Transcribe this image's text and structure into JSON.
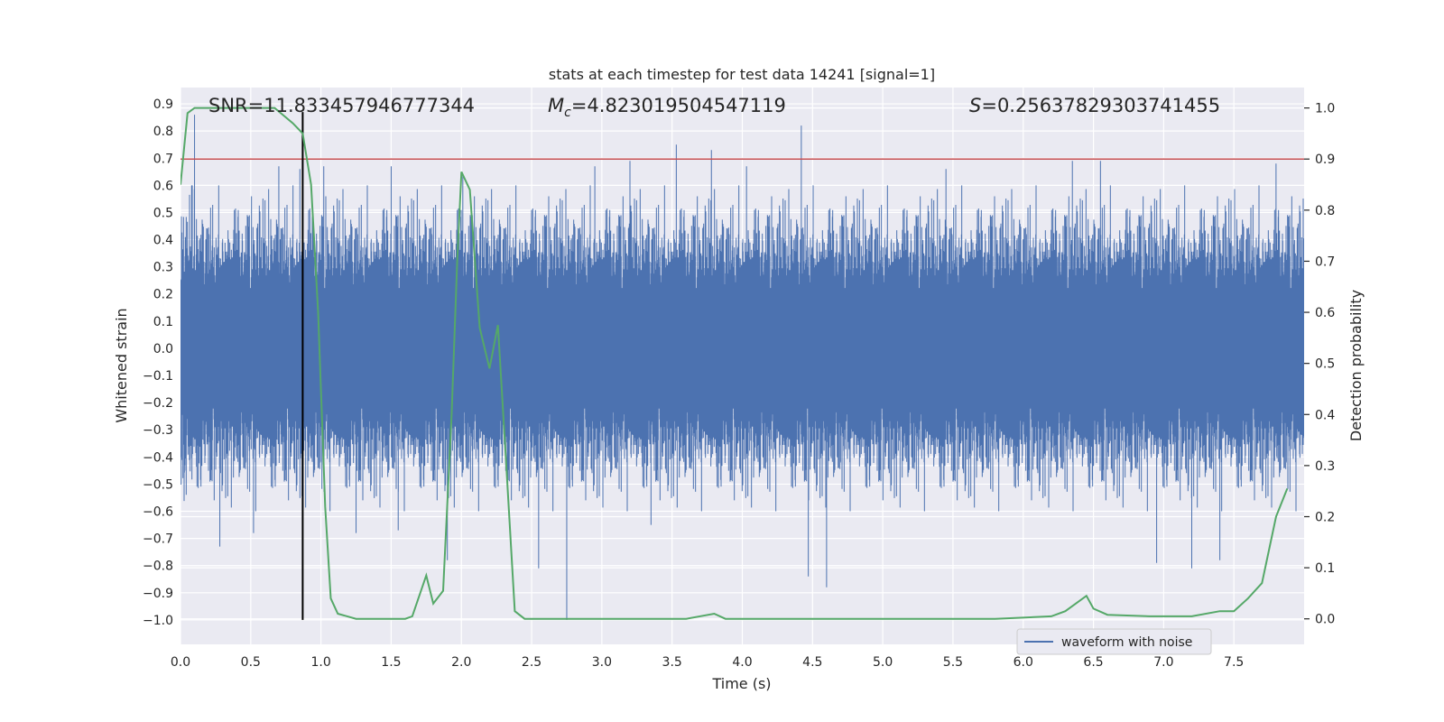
{
  "chart_data": {
    "type": "line",
    "title": "stats at each timestep for test data 14241 [signal=1]",
    "xlabel": "Time (s)",
    "ylabel_left": "Whitened strain",
    "ylabel_right": "Detection probability",
    "xlim": [
      0.0,
      8.0
    ],
    "ylim_left": [
      -1.09,
      0.96
    ],
    "ylim_right": [
      -0.05,
      1.04
    ],
    "x_ticks": [
      "0.0",
      "0.5",
      "1.0",
      "1.5",
      "2.0",
      "2.5",
      "3.0",
      "3.5",
      "4.0",
      "4.5",
      "5.0",
      "5.5",
      "6.0",
      "6.5",
      "7.0",
      "7.5"
    ],
    "x_tick_values": [
      0.0,
      0.5,
      1.0,
      1.5,
      2.0,
      2.5,
      3.0,
      3.5,
      4.0,
      4.5,
      5.0,
      5.5,
      6.0,
      6.5,
      7.0,
      7.5
    ],
    "y_left_ticks": [
      "0.9",
      "0.8",
      "0.7",
      "0.6",
      "0.5",
      "0.4",
      "0.3",
      "0.2",
      "0.1",
      "0.0",
      "−0.1",
      "−0.2",
      "−0.3",
      "−0.4",
      "−0.5",
      "−0.6",
      "−0.7",
      "−0.8",
      "−0.9",
      "−1.0"
    ],
    "y_left_tick_values": [
      0.9,
      0.8,
      0.7,
      0.6,
      0.5,
      0.4,
      0.3,
      0.2,
      0.1,
      0.0,
      -0.1,
      -0.2,
      -0.3,
      -0.4,
      -0.5,
      -0.6,
      -0.7,
      -0.8,
      -0.9,
      -1.0
    ],
    "y_right_ticks": [
      "1.0",
      "0.9",
      "0.8",
      "0.7",
      "0.6",
      "0.5",
      "0.4",
      "0.3",
      "0.2",
      "0.1",
      "0.0"
    ],
    "y_right_tick_values": [
      1.0,
      0.9,
      0.8,
      0.7,
      0.6,
      0.5,
      0.4,
      0.3,
      0.2,
      0.1,
      0.0
    ],
    "annotations": {
      "snr": "SNR=11.833457946777344",
      "mc_symbol": "M",
      "mc_sub": "c",
      "mc_value": "=4.823019504547119",
      "s_symbol": "S",
      "s_value": "=0.25637829303741455"
    },
    "threshold": {
      "value": 0.9,
      "axis": "right",
      "color": "#c44e52"
    },
    "marker_line": {
      "x": 0.87,
      "y_range": [
        -1.0,
        0.87
      ],
      "color": "#000000"
    },
    "legend": {
      "label": "waveform with noise",
      "placement": "lower-right"
    },
    "grid": true,
    "series": [
      {
        "name": "waveform with noise",
        "axis": "left",
        "color": "#4c72b0",
        "description_envelope": true,
        "spikes": [
          [
            0.1,
            0.86
          ],
          [
            0.28,
            -0.73
          ],
          [
            0.52,
            -0.68
          ],
          [
            0.7,
            0.67
          ],
          [
            0.85,
            0.66
          ],
          [
            1.02,
            0.67
          ],
          [
            1.25,
            -0.68
          ],
          [
            1.5,
            0.67
          ],
          [
            1.55,
            -0.67
          ],
          [
            1.9,
            -0.78
          ],
          [
            2.01,
            0.64
          ],
          [
            2.55,
            -0.81
          ],
          [
            2.75,
            -1.0
          ],
          [
            2.95,
            0.67
          ],
          [
            3.2,
            0.69
          ],
          [
            3.35,
            -0.65
          ],
          [
            3.53,
            0.75
          ],
          [
            3.78,
            0.73
          ],
          [
            4.03,
            0.67
          ],
          [
            4.42,
            0.82
          ],
          [
            4.47,
            -0.84
          ],
          [
            4.6,
            -0.88
          ],
          [
            5.45,
            0.66
          ],
          [
            6.35,
            0.69
          ],
          [
            6.55,
            0.69
          ],
          [
            6.95,
            -0.79
          ],
          [
            7.2,
            -0.81
          ],
          [
            7.4,
            -0.78
          ],
          [
            7.8,
            0.68
          ]
        ]
      },
      {
        "name": "Detection probability",
        "axis": "right",
        "color": "#55a868",
        "points": [
          [
            0.0,
            0.85
          ],
          [
            0.05,
            0.99
          ],
          [
            0.1,
            1.0
          ],
          [
            0.2,
            1.0
          ],
          [
            0.4,
            1.0
          ],
          [
            0.6,
            1.0
          ],
          [
            0.67,
            1.0
          ],
          [
            0.8,
            0.97
          ],
          [
            0.87,
            0.95
          ],
          [
            0.93,
            0.85
          ],
          [
            0.98,
            0.6
          ],
          [
            1.03,
            0.22
          ],
          [
            1.07,
            0.04
          ],
          [
            1.12,
            0.01
          ],
          [
            1.25,
            0.0
          ],
          [
            1.5,
            0.0
          ],
          [
            1.6,
            0.0
          ],
          [
            1.65,
            0.005
          ],
          [
            1.75,
            0.085
          ],
          [
            1.8,
            0.03
          ],
          [
            1.87,
            0.055
          ],
          [
            1.93,
            0.4
          ],
          [
            1.97,
            0.7
          ],
          [
            2.0,
            0.875
          ],
          [
            2.06,
            0.84
          ],
          [
            2.13,
            0.57
          ],
          [
            2.2,
            0.49
          ],
          [
            2.26,
            0.575
          ],
          [
            2.32,
            0.3
          ],
          [
            2.38,
            0.015
          ],
          [
            2.45,
            0.0
          ],
          [
            2.7,
            0.0
          ],
          [
            3.0,
            0.0
          ],
          [
            3.3,
            0.0
          ],
          [
            3.6,
            0.0
          ],
          [
            3.8,
            0.01
          ],
          [
            3.88,
            0.0
          ],
          [
            4.2,
            0.0
          ],
          [
            4.6,
            0.0
          ],
          [
            5.0,
            0.0
          ],
          [
            5.4,
            0.0
          ],
          [
            5.8,
            0.0
          ],
          [
            6.2,
            0.005
          ],
          [
            6.3,
            0.015
          ],
          [
            6.45,
            0.045
          ],
          [
            6.5,
            0.02
          ],
          [
            6.6,
            0.008
          ],
          [
            6.9,
            0.005
          ],
          [
            7.2,
            0.005
          ],
          [
            7.4,
            0.015
          ],
          [
            7.5,
            0.015
          ],
          [
            7.6,
            0.04
          ],
          [
            7.7,
            0.07
          ],
          [
            7.8,
            0.2
          ],
          [
            7.88,
            0.255
          ]
        ]
      }
    ]
  }
}
